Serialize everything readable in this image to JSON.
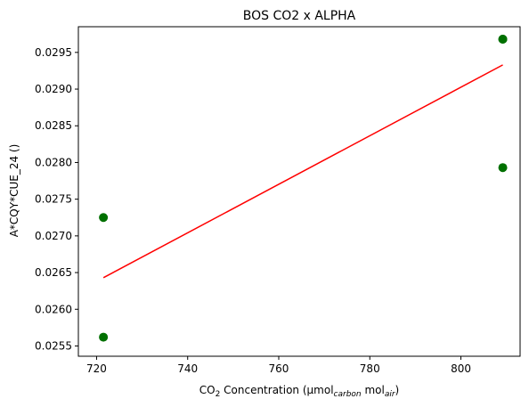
{
  "chart_data": {
    "type": "scatter",
    "title": "BOS CO2 x ALPHA",
    "xlabel_parts": {
      "a": "CO",
      "a_sub": "2",
      "b": " Concentration (µmol",
      "b_sub": "carbon",
      "c": " mol",
      "c_sub": "air",
      "d": ")"
    },
    "ylabel": "A*CQY*CUE_24 ()",
    "xlim": [
      716,
      813
    ],
    "ylim": [
      0.02536,
      0.02985
    ],
    "xticks": [
      720,
      740,
      760,
      780,
      800
    ],
    "xtick_labels": [
      "720",
      "740",
      "760",
      "780",
      "800"
    ],
    "yticks": [
      0.0255,
      0.026,
      0.0265,
      0.027,
      0.0275,
      0.028,
      0.0285,
      0.029,
      0.0295
    ],
    "ytick_labels": [
      "0.0255",
      "0.0260",
      "0.0265",
      "0.0270",
      "0.0275",
      "0.0280",
      "0.0285",
      "0.0290",
      "0.0295"
    ],
    "points": [
      {
        "x": 721.5,
        "y": 0.02725
      },
      {
        "x": 721.5,
        "y": 0.02562
      },
      {
        "x": 809.2,
        "y": 0.02968
      },
      {
        "x": 809.2,
        "y": 0.02968
      },
      {
        "x": 809.2,
        "y": 0.02793
      }
    ],
    "fit_line": {
      "x": [
        721.5,
        809.2
      ],
      "y": [
        0.02643,
        0.02933
      ]
    },
    "point_color": "#007000",
    "line_color": "#ff0000",
    "grid": false
  }
}
